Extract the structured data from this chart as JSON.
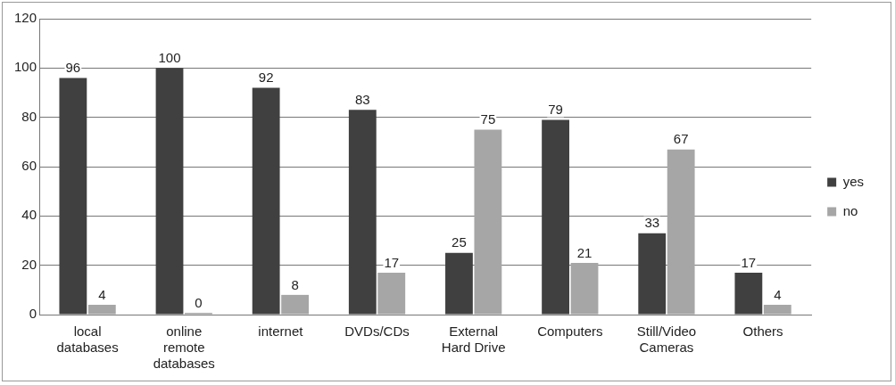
{
  "chart_data": {
    "type": "bar",
    "categories": [
      "local databases",
      "online remote databases",
      "internet",
      "DVDs/CDs",
      "External Hard Drive",
      "Computers",
      "Still/Video Cameras",
      "Others"
    ],
    "series": [
      {
        "name": "yes",
        "color": "#404040",
        "values": [
          96,
          100,
          92,
          83,
          25,
          79,
          33,
          17
        ]
      },
      {
        "name": "no",
        "color": "#a6a6a6",
        "values": [
          4,
          0,
          8,
          17,
          75,
          21,
          67,
          4
        ]
      }
    ],
    "ylim": [
      0,
      120
    ],
    "yticks": [
      0,
      20,
      40,
      60,
      80,
      100,
      120
    ],
    "grid": "y",
    "legend": "right",
    "data_labels": true
  }
}
